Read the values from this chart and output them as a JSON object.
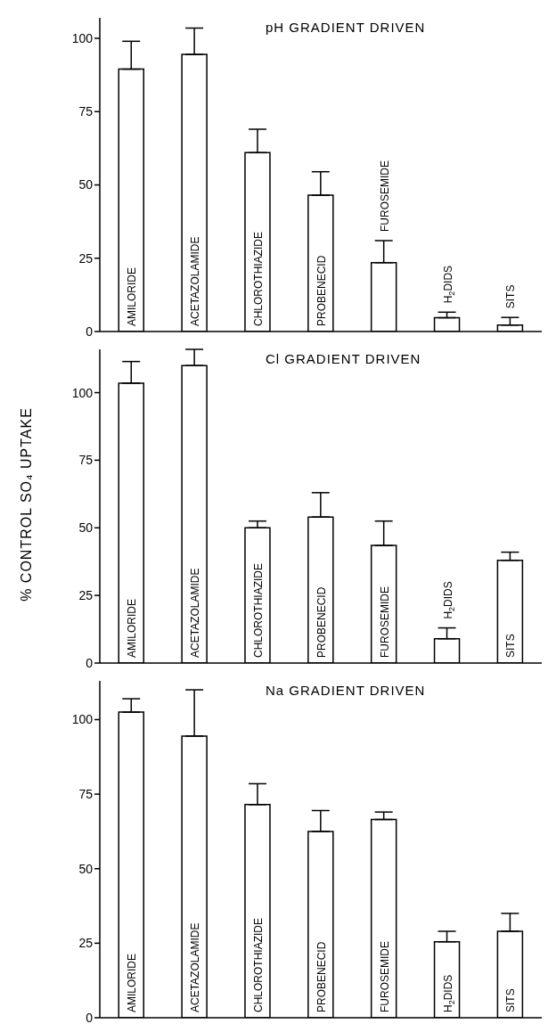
{
  "chart_data": [
    {
      "type": "bar",
      "title": "pH GRADIENT DRIVEN",
      "categories": [
        "AMILORIDE",
        "ACETAZOLAMIDE",
        "CHLOROTHIAZIDE",
        "PROBENECID",
        "FUROSEMIDE",
        "H$_{2}$DIDS",
        "SITS"
      ],
      "values": [
        89.5,
        94.5,
        61,
        46.5,
        23.5,
        4.7,
        2.2
      ],
      "errors": [
        [
          89.5,
          99
        ],
        [
          94.5,
          103.5
        ],
        [
          61,
          69
        ],
        [
          46.5,
          54.5
        ],
        [
          23.5,
          31
        ],
        [
          4.7,
          6.6
        ],
        [
          2.2,
          4.8
        ]
      ],
      "color": "#ffffff",
      "ylim": [
        0,
        107
      ],
      "yticks": [
        0,
        25,
        50,
        75,
        100
      ],
      "grid": false,
      "legend": false
    },
    {
      "type": "bar",
      "title": "Cl GRADIENT DRIVEN",
      "ylabel": "% CONTROL SO₄ UPTAKE",
      "categories": [
        "AMILORIDE",
        "ACETAZOLAMIDE",
        "CHLOROTHIAZIDE",
        "PROBENECID",
        "FUROSEMIDE",
        "H$_{2}$DIDS",
        "SITS"
      ],
      "values": [
        103.5,
        110,
        50,
        54,
        43.5,
        9,
        38
      ],
      "errors": [
        [
          103.5,
          111.5
        ],
        [
          110,
          116
        ],
        [
          50,
          52.5
        ],
        [
          54,
          63
        ],
        [
          43.5,
          52.5
        ],
        [
          9,
          13
        ],
        [
          38,
          41
        ]
      ],
      "color": "#ffffff",
      "ylim": [
        0,
        116
      ],
      "yticks": [
        0,
        25,
        50,
        75,
        100
      ],
      "grid": false,
      "legend": false
    },
    {
      "type": "bar",
      "title": "Na GRADIENT DRIVEN",
      "categories": [
        "AMILORIDE",
        "ACETAZOLAMIDE",
        "CHLOROTHIAZIDE",
        "PROBENECID",
        "FUROSEMIDE",
        "H$_{2}$DIDS",
        "SITS"
      ],
      "values": [
        102.5,
        94.5,
        71.5,
        62.5,
        66.5,
        25.5,
        29
      ],
      "errors": [
        [
          102.5,
          107
        ],
        [
          94.5,
          110
        ],
        [
          71.5,
          78.5
        ],
        [
          62.5,
          69.5
        ],
        [
          66.5,
          69
        ],
        [
          25.5,
          29
        ],
        [
          29,
          35
        ]
      ],
      "color": "#ffffff",
      "ylim": [
        0,
        113
      ],
      "yticks": [
        0,
        25,
        50,
        75,
        100
      ],
      "grid": false,
      "legend": false
    }
  ]
}
